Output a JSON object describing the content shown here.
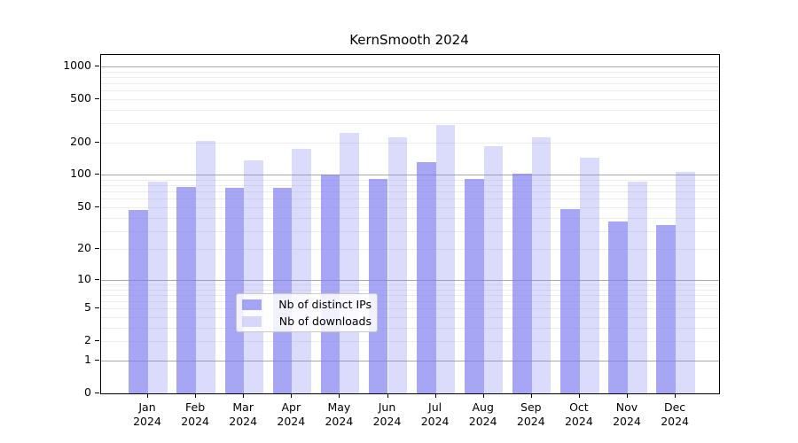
{
  "chart_data": {
    "type": "bar",
    "title": "KernSmooth 2024",
    "categories": [
      "Jan",
      "Feb",
      "Mar",
      "Apr",
      "May",
      "Jun",
      "Jul",
      "Aug",
      "Sep",
      "Oct",
      "Nov",
      "Dec"
    ],
    "year": "2024",
    "series": [
      {
        "name": "Nb of distinct IPs",
        "values": [
          47,
          78,
          76,
          76,
          101,
          92,
          131,
          92,
          102,
          48,
          37,
          34
        ]
      },
      {
        "name": "Nb of downloads",
        "values": [
          87,
          205,
          136,
          175,
          245,
          221,
          290,
          186,
          224,
          145,
          87,
          107
        ]
      }
    ],
    "y_axis": {
      "ticks": [
        0,
        1,
        2,
        5,
        10,
        20,
        50,
        100,
        200,
        500,
        1000
      ],
      "scale": "log10(value+1)",
      "range": [
        0,
        1000
      ]
    },
    "gridlines": {
      "major": [
        1,
        10,
        100,
        1000
      ],
      "minor": [
        2,
        3,
        4,
        5,
        6,
        7,
        8,
        9,
        20,
        30,
        40,
        50,
        60,
        70,
        80,
        90,
        200,
        300,
        400,
        500,
        600,
        700,
        800,
        900
      ]
    },
    "legend": {
      "position": "inside-bottom-center"
    },
    "colors": {
      "ips": "rgba(124,124,240,0.68)",
      "downloads": "rgba(124,124,240,0.28)",
      "grid_major": "#a8a8a8",
      "grid_minor": "#ededed",
      "axis": "#000000"
    }
  }
}
